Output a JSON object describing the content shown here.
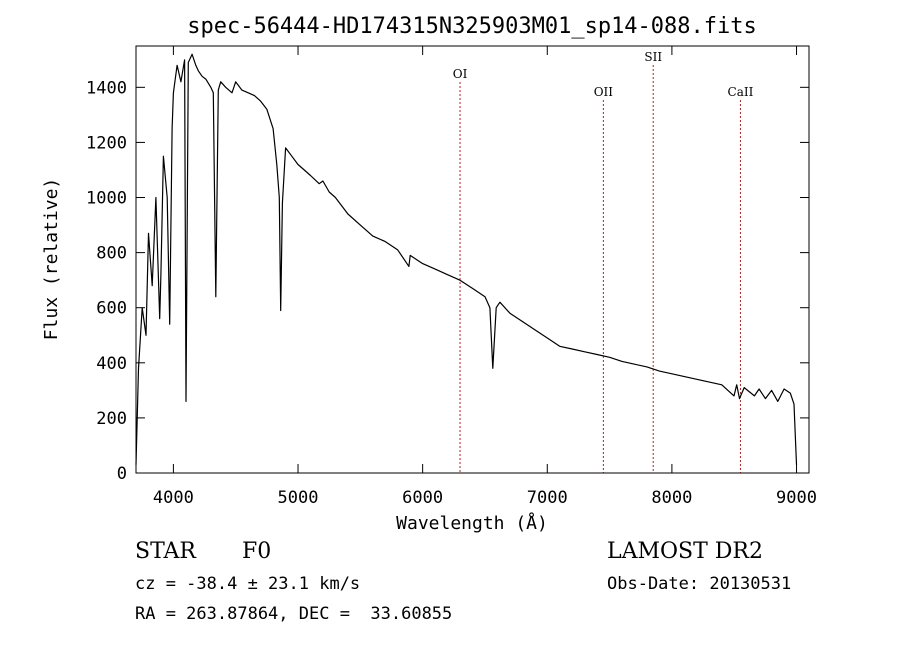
{
  "chart_data": {
    "type": "line",
    "title": "spec-56444-HD174315N325903M01_sp14-088.fits",
    "xlabel": "Wavelength (Å)",
    "ylabel": "Flux (relative)",
    "xlim": [
      3700,
      9100
    ],
    "ylim": [
      0,
      1550
    ],
    "x_ticks": [
      4000,
      5000,
      6000,
      7000,
      8000,
      9000
    ],
    "x_tick_labels": [
      "4000",
      "5000",
      "6000",
      "7000",
      "8000",
      "9000"
    ],
    "y_ticks": [
      0,
      200,
      400,
      600,
      800,
      1000,
      1200,
      1400
    ],
    "y_tick_labels": [
      "0",
      "200",
      "400",
      "600",
      "800",
      "1000",
      "1200",
      "1400"
    ],
    "grid": false,
    "line_color": "#000000",
    "marker_color": "#b22222",
    "series": [
      {
        "x": [
          3700,
          3720,
          3750,
          3780,
          3800,
          3830,
          3860,
          3890,
          3900,
          3920,
          3950,
          3970,
          3990,
          4000,
          4030,
          4060,
          4090,
          4101,
          4120,
          4150,
          4180,
          4200,
          4230,
          4260,
          4300,
          4320,
          4340,
          4360,
          4380,
          4420,
          4470,
          4500,
          4550,
          4600,
          4650,
          4700,
          4750,
          4800,
          4830,
          4850,
          4861,
          4875,
          4900,
          4950,
          5000,
          5050,
          5100,
          5170,
          5200,
          5250,
          5300,
          5400,
          5500,
          5600,
          5700,
          5800,
          5890,
          5900,
          6000,
          6100,
          6200,
          6300,
          6400,
          6500,
          6540,
          6563,
          6590,
          6620,
          6700,
          6800,
          6900,
          7000,
          7100,
          7200,
          7300,
          7400,
          7500,
          7600,
          7700,
          7800,
          7900,
          8000,
          8100,
          8200,
          8300,
          8400,
          8498,
          8520,
          8542,
          8580,
          8662,
          8700,
          8750,
          8800,
          8850,
          8900,
          8950,
          8980,
          9000
        ],
        "y": [
          30,
          380,
          600,
          500,
          870,
          680,
          1000,
          560,
          720,
          1150,
          1000,
          540,
          1250,
          1380,
          1480,
          1420,
          1500,
          260,
          1490,
          1520,
          1480,
          1460,
          1440,
          1430,
          1400,
          1380,
          640,
          1390,
          1420,
          1400,
          1380,
          1420,
          1390,
          1380,
          1370,
          1350,
          1320,
          1250,
          1120,
          1000,
          590,
          980,
          1180,
          1150,
          1120,
          1100,
          1080,
          1050,
          1060,
          1020,
          1000,
          940,
          900,
          860,
          840,
          810,
          750,
          790,
          760,
          740,
          720,
          700,
          670,
          640,
          600,
          380,
          600,
          620,
          580,
          550,
          520,
          490,
          460,
          450,
          440,
          430,
          420,
          405,
          395,
          385,
          370,
          360,
          350,
          340,
          330,
          320,
          280,
          320,
          270,
          310,
          280,
          305,
          270,
          300,
          260,
          305,
          290,
          250,
          30
        ]
      }
    ],
    "line_markers": [
      {
        "label": "OI",
        "x": 6300
      },
      {
        "label": "OII",
        "x": 7450
      },
      {
        "label": "SII",
        "x": 7850
      },
      {
        "label": "CaII",
        "x": 8550
      }
    ]
  },
  "info": {
    "class_label": "STAR",
    "subclass_label": "F0",
    "survey": "LAMOST DR2",
    "velocity": "cz = -38.4 ± 23.1 km/s",
    "obs_date": "Obs-Date: 20130531",
    "coords": "RA = 263.87864, DEC =  33.60855"
  }
}
